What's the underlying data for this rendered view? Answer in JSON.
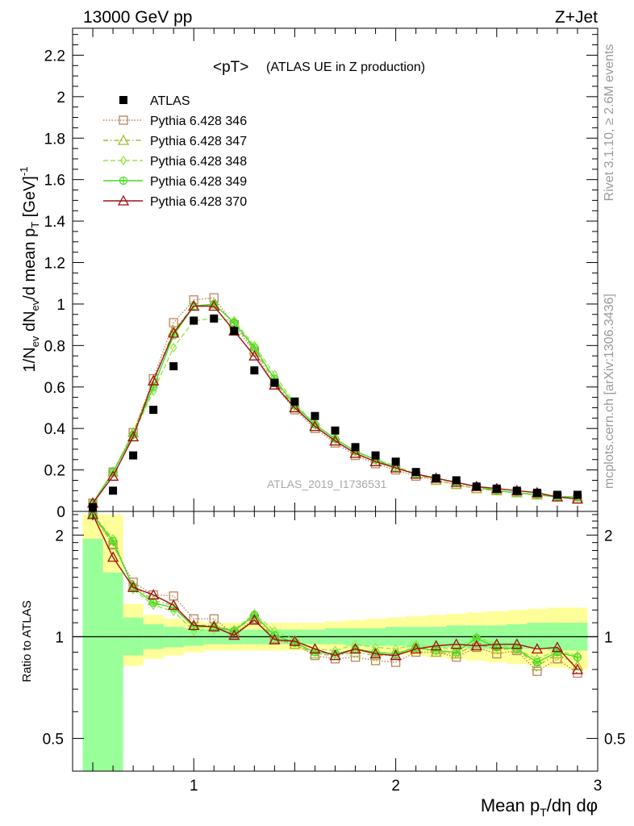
{
  "header": {
    "left": "13000 GeV pp",
    "right": "Z+Jet"
  },
  "side_labels": {
    "rivet": "Rivet 3.1.10, ≥ 2.6M events",
    "mcplots": "mcplots.cern.ch [arXiv:1306.3436]"
  },
  "chart_data": {
    "type": "scatter",
    "title": "<pT>",
    "subtitle": "(ATLAS UE in Z production)",
    "ylabel": "1/N_ev dN_ev/d mean p_T [GeV]^-1",
    "xlabel": "Mean p_T/dη dφ",
    "ratio_ylabel": "Ratio to ATLAS",
    "analysis_label": "ATLAS_2019_I1736531",
    "xlim": [
      0.4,
      3.0
    ],
    "ylim": [
      0,
      2.33
    ],
    "ratio_ylim": [
      0.4,
      2.35
    ],
    "ratio_log": true,
    "x_ticks": [
      "1",
      "2",
      "3"
    ],
    "y_ticks": [
      "0",
      "0.2",
      "0.4",
      "0.6",
      "0.8",
      "1",
      "1.2",
      "1.4",
      "1.6",
      "1.8",
      "2",
      "2.2"
    ],
    "ratio_y_ticks": [
      "0.5",
      "1",
      "2"
    ],
    "legend_position": "top-left",
    "x": [
      0.5,
      0.6,
      0.7,
      0.8,
      0.9,
      1.0,
      1.1,
      1.2,
      1.3,
      1.4,
      1.5,
      1.6,
      1.7,
      1.8,
      1.9,
      2.0,
      2.1,
      2.2,
      2.3,
      2.4,
      2.5,
      2.6,
      2.7,
      2.8,
      2.9
    ],
    "data": {
      "name": "ATLAS",
      "values": [
        0.02,
        0.1,
        0.27,
        0.49,
        0.7,
        0.92,
        0.93,
        0.87,
        0.68,
        0.62,
        0.53,
        0.46,
        0.39,
        0.31,
        0.27,
        0.24,
        0.19,
        0.16,
        0.15,
        0.12,
        0.11,
        0.1,
        0.09,
        0.08,
        0.08
      ]
    },
    "ratio_bands": {
      "x_edges": [
        0.45,
        0.55,
        0.65,
        0.75,
        0.85,
        0.95,
        1.05,
        1.15,
        1.25,
        1.35,
        1.45,
        1.55,
        1.65,
        1.75,
        1.85,
        1.95,
        2.05,
        2.15,
        2.25,
        2.35,
        2.45,
        2.55,
        2.65,
        2.75,
        2.85,
        2.95
      ],
      "green": [
        [
          0.4,
          1.95
        ],
        [
          0.4,
          1.55
        ],
        [
          0.88,
          1.14
        ],
        [
          0.92,
          1.09
        ],
        [
          0.93,
          1.07
        ],
        [
          0.94,
          1.06
        ],
        [
          0.95,
          1.05
        ],
        [
          0.95,
          1.05
        ],
        [
          0.95,
          1.05
        ],
        [
          0.95,
          1.05
        ],
        [
          0.95,
          1.05
        ],
        [
          0.95,
          1.05
        ],
        [
          0.95,
          1.06
        ],
        [
          0.94,
          1.06
        ],
        [
          0.94,
          1.06
        ],
        [
          0.94,
          1.07
        ],
        [
          0.93,
          1.07
        ],
        [
          0.93,
          1.07
        ],
        [
          0.93,
          1.08
        ],
        [
          0.92,
          1.08
        ],
        [
          0.92,
          1.08
        ],
        [
          0.92,
          1.09
        ],
        [
          0.92,
          1.1
        ],
        [
          0.91,
          1.1
        ],
        [
          0.91,
          1.1
        ]
      ],
      "yellow": [
        [
          0.4,
          2.3
        ],
        [
          0.66,
          2.3
        ],
        [
          0.82,
          1.25
        ],
        [
          0.86,
          1.16
        ],
        [
          0.88,
          1.13
        ],
        [
          0.9,
          1.11
        ],
        [
          0.91,
          1.1
        ],
        [
          0.91,
          1.1
        ],
        [
          0.91,
          1.1
        ],
        [
          0.91,
          1.1
        ],
        [
          0.91,
          1.1
        ],
        [
          0.91,
          1.1
        ],
        [
          0.91,
          1.11
        ],
        [
          0.9,
          1.12
        ],
        [
          0.9,
          1.13
        ],
        [
          0.89,
          1.14
        ],
        [
          0.88,
          1.15
        ],
        [
          0.87,
          1.16
        ],
        [
          0.86,
          1.17
        ],
        [
          0.85,
          1.18
        ],
        [
          0.84,
          1.19
        ],
        [
          0.83,
          1.2
        ],
        [
          0.82,
          1.21
        ],
        [
          0.81,
          1.22
        ],
        [
          0.8,
          1.22
        ]
      ]
    },
    "series": [
      {
        "name": "Pythia 6.428 346",
        "color": "#b8865a",
        "marker": "square",
        "dash": "1.5,2",
        "values": [
          0.04,
          0.19,
          0.38,
          0.64,
          0.91,
          1.02,
          1.03,
          0.9,
          0.77,
          0.61,
          0.49,
          0.4,
          0.33,
          0.27,
          0.23,
          0.2,
          0.17,
          0.15,
          0.13,
          0.11,
          0.1,
          0.09,
          0.08,
          0.07,
          0.06
        ],
        "ratio": [
          2.3,
          1.87,
          1.45,
          1.33,
          1.32,
          1.13,
          1.13,
          1.02,
          1.13,
          0.98,
          0.95,
          0.88,
          0.86,
          0.87,
          0.85,
          0.84,
          0.9,
          0.9,
          0.87,
          0.93,
          0.89,
          0.91,
          0.79,
          0.86,
          0.78
        ]
      },
      {
        "name": "Pythia 6.428 347",
        "color": "#a8b832",
        "marker": "triangle",
        "dash": "6,3,1.5,3",
        "values": [
          0.04,
          0.19,
          0.38,
          0.63,
          0.87,
          0.99,
          1.0,
          0.91,
          0.78,
          0.63,
          0.5,
          0.41,
          0.34,
          0.28,
          0.24,
          0.21,
          0.18,
          0.15,
          0.13,
          0.11,
          0.1,
          0.09,
          0.08,
          0.07,
          0.07
        ],
        "ratio": [
          2.3,
          1.88,
          1.42,
          1.28,
          1.24,
          1.08,
          1.08,
          1.04,
          1.15,
          0.99,
          0.95,
          0.89,
          0.88,
          0.9,
          0.88,
          0.88,
          0.93,
          0.9,
          0.89,
          0.95,
          0.92,
          0.92,
          0.82,
          0.89,
          0.82
        ]
      },
      {
        "name": "Pythia 6.428 348",
        "color": "#99e650",
        "marker": "diamond",
        "dash": "6,3",
        "values": [
          0.04,
          0.19,
          0.37,
          0.58,
          0.79,
          0.92,
          0.93,
          0.92,
          0.8,
          0.66,
          0.52,
          0.42,
          0.35,
          0.29,
          0.25,
          0.22,
          0.18,
          0.16,
          0.14,
          0.12,
          0.1,
          0.09,
          0.08,
          0.07,
          0.07
        ],
        "ratio": [
          2.3,
          1.95,
          1.38,
          1.24,
          1.19,
          1.04,
          1.05,
          1.05,
          1.17,
          1.04,
          0.98,
          0.92,
          0.91,
          0.95,
          0.93,
          0.92,
          0.95,
          0.93,
          0.92,
          1.0,
          0.95,
          0.92,
          0.86,
          0.91,
          0.88
        ]
      },
      {
        "name": "Pythia 6.428 349",
        "color": "#44dd22",
        "marker": "circle-plus",
        "dash": "",
        "values": [
          0.04,
          0.19,
          0.37,
          0.6,
          0.85,
          0.99,
          1.0,
          0.91,
          0.79,
          0.64,
          0.51,
          0.42,
          0.35,
          0.29,
          0.25,
          0.21,
          0.18,
          0.16,
          0.14,
          0.12,
          0.1,
          0.09,
          0.08,
          0.07,
          0.07
        ],
        "ratio": [
          2.3,
          1.92,
          1.4,
          1.26,
          1.22,
          1.07,
          1.07,
          1.04,
          1.16,
          1.01,
          0.96,
          0.9,
          0.89,
          0.92,
          0.9,
          0.89,
          0.93,
          0.91,
          0.9,
          0.99,
          0.93,
          0.92,
          0.84,
          0.9,
          0.87
        ]
      },
      {
        "name": "Pythia 6.428 370",
        "color": "#a01010",
        "marker": "triangle",
        "dash": "",
        "values": [
          0.04,
          0.17,
          0.36,
          0.63,
          0.86,
          0.99,
          0.99,
          0.87,
          0.75,
          0.61,
          0.5,
          0.41,
          0.34,
          0.28,
          0.24,
          0.21,
          0.18,
          0.16,
          0.14,
          0.12,
          0.11,
          0.1,
          0.09,
          0.07,
          0.06
        ],
        "ratio": [
          2.3,
          1.72,
          1.4,
          1.33,
          1.24,
          1.08,
          1.07,
          1.01,
          1.12,
          0.98,
          0.97,
          0.92,
          0.88,
          0.92,
          0.89,
          0.88,
          0.92,
          0.94,
          0.95,
          0.94,
          0.95,
          0.95,
          0.92,
          0.93,
          0.8
        ]
      }
    ]
  }
}
